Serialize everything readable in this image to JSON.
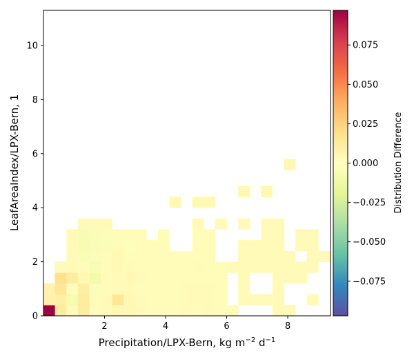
{
  "chart_data": {
    "type": "heatmap",
    "xlabel": "Precipitation/LPX-Bern,  kg m",
    "xlabel_sup1": "−2",
    "xlabel_mid": " d",
    "xlabel_sup2": "−1",
    "ylabel": "LeafAreaIndex/LPX-Bern,  1",
    "xlim": [
      0,
      9.4
    ],
    "ylim": [
      0,
      11.3
    ],
    "xticks": [
      2,
      4,
      6,
      8
    ],
    "xtick_labels": [
      "2",
      "4",
      "6",
      "8"
    ],
    "yticks": [
      0,
      2,
      4,
      6,
      8,
      10
    ],
    "ytick_labels": [
      "0",
      "2",
      "4",
      "6",
      "8",
      "10"
    ],
    "colorbar": {
      "label": "Distribution Difference",
      "colormap": "Spectral_r",
      "vmin": -0.097,
      "vmax": 0.097,
      "ticks": [
        0.075,
        0.05,
        0.025,
        0.0,
        -0.025,
        -0.05,
        -0.075
      ],
      "tick_labels": [
        "0.075",
        "0.050",
        "0.025",
        "0.000",
        "−0.025",
        "−0.050",
        "−0.075"
      ]
    },
    "cell_size": {
      "dx": 0.375,
      "dy": 0.4
    },
    "cells": [
      [
        0.0,
        0.0,
        0.097
      ],
      [
        0.375,
        0.0,
        0.012
      ],
      [
        0.75,
        0.0,
        0.003
      ],
      [
        1.125,
        0.0,
        0.012
      ],
      [
        1.5,
        0.0,
        0.002
      ],
      [
        1.875,
        0.0,
        0.003
      ],
      [
        2.25,
        0.0,
        0.005
      ],
      [
        2.625,
        0.0,
        0.004
      ],
      [
        3.0,
        0.0,
        0.003
      ],
      [
        3.375,
        0.0,
        0.002
      ],
      [
        3.75,
        0.0,
        0.002
      ],
      [
        4.125,
        0.0,
        0.002
      ],
      [
        4.5,
        0.0,
        0.003
      ],
      [
        4.875,
        0.0,
        0.002
      ],
      [
        5.25,
        0.0,
        0.003
      ],
      [
        5.625,
        0.0,
        0.002
      ],
      [
        6.0,
        0.0,
        0.003
      ],
      [
        7.5,
        0.0,
        0.003
      ],
      [
        7.875,
        0.0,
        0.003
      ],
      [
        0.0,
        0.4,
        0.008
      ],
      [
        0.375,
        0.4,
        0.01
      ],
      [
        0.75,
        0.4,
        -0.008
      ],
      [
        1.125,
        0.4,
        0.012
      ],
      [
        1.5,
        0.4,
        0.002
      ],
      [
        1.875,
        0.4,
        0.003
      ],
      [
        2.25,
        0.4,
        0.015
      ],
      [
        2.625,
        0.4,
        0.004
      ],
      [
        3.0,
        0.4,
        0.003
      ],
      [
        3.375,
        0.4,
        0.002
      ],
      [
        3.75,
        0.4,
        0.002
      ],
      [
        4.125,
        0.4,
        0.002
      ],
      [
        4.5,
        0.4,
        0.003
      ],
      [
        4.875,
        0.4,
        0.003
      ],
      [
        5.25,
        0.4,
        0.003
      ],
      [
        5.625,
        0.4,
        0.002
      ],
      [
        6.375,
        0.4,
        0.003
      ],
      [
        6.75,
        0.4,
        0.003
      ],
      [
        7.125,
        0.4,
        0.003
      ],
      [
        7.5,
        0.4,
        0.003
      ],
      [
        8.625,
        0.4,
        0.003
      ],
      [
        0.0,
        0.8,
        0.008
      ],
      [
        0.375,
        0.8,
        0.015
      ],
      [
        0.75,
        0.8,
        0.002
      ],
      [
        1.125,
        0.8,
        0.01
      ],
      [
        1.5,
        0.8,
        -0.003
      ],
      [
        1.875,
        0.8,
        0.002
      ],
      [
        2.25,
        0.8,
        0.003
      ],
      [
        2.625,
        0.8,
        0.003
      ],
      [
        3.0,
        0.8,
        0.002
      ],
      [
        3.375,
        0.8,
        0.002
      ],
      [
        3.75,
        0.8,
        0.002
      ],
      [
        4.125,
        0.8,
        0.002
      ],
      [
        4.5,
        0.8,
        0.003
      ],
      [
        4.875,
        0.8,
        0.003
      ],
      [
        5.25,
        0.8,
        0.003
      ],
      [
        5.625,
        0.8,
        0.002
      ],
      [
        6.375,
        0.8,
        0.003
      ],
      [
        7.5,
        0.8,
        0.003
      ],
      [
        0.375,
        1.2,
        0.018
      ],
      [
        0.75,
        1.2,
        0.012
      ],
      [
        1.125,
        1.2,
        0.004
      ],
      [
        1.5,
        1.2,
        -0.01
      ],
      [
        1.875,
        1.2,
        0.002
      ],
      [
        2.25,
        1.2,
        0.003
      ],
      [
        2.625,
        1.2,
        0.004
      ],
      [
        3.0,
        1.2,
        0.003
      ],
      [
        3.375,
        1.2,
        0.002
      ],
      [
        3.75,
        1.2,
        0.002
      ],
      [
        4.125,
        1.2,
        0.002
      ],
      [
        4.5,
        1.2,
        0.002
      ],
      [
        4.875,
        1.2,
        0.002
      ],
      [
        5.25,
        1.2,
        0.002
      ],
      [
        5.625,
        1.2,
        0.002
      ],
      [
        6.375,
        1.2,
        0.003
      ],
      [
        7.5,
        1.2,
        0.003
      ],
      [
        7.875,
        1.2,
        0.003
      ],
      [
        8.25,
        1.2,
        0.003
      ],
      [
        0.375,
        1.6,
        0.003
      ],
      [
        0.75,
        1.6,
        0.003
      ],
      [
        1.125,
        1.6,
        0.002
      ],
      [
        1.5,
        1.6,
        -0.006
      ],
      [
        1.875,
        1.6,
        0.002
      ],
      [
        2.25,
        1.6,
        0.004
      ],
      [
        2.625,
        1.6,
        0.003
      ],
      [
        3.0,
        1.6,
        0.002
      ],
      [
        3.375,
        1.6,
        0.002
      ],
      [
        3.75,
        1.6,
        0.002
      ],
      [
        4.125,
        1.6,
        0.002
      ],
      [
        4.5,
        1.6,
        0.002
      ],
      [
        4.875,
        1.6,
        0.003
      ],
      [
        5.25,
        1.6,
        0.002
      ],
      [
        5.625,
        1.6,
        0.002
      ],
      [
        6.0,
        1.6,
        0.003
      ],
      [
        6.375,
        1.6,
        0.003
      ],
      [
        6.75,
        1.6,
        0.003
      ],
      [
        7.125,
        1.6,
        0.003
      ],
      [
        7.5,
        1.6,
        0.003
      ],
      [
        7.875,
        1.6,
        0.003
      ],
      [
        8.25,
        1.6,
        0.003
      ],
      [
        8.625,
        1.6,
        0.003
      ],
      [
        0.75,
        2.0,
        0.003
      ],
      [
        1.125,
        2.0,
        -0.005
      ],
      [
        1.5,
        2.0,
        -0.004
      ],
      [
        1.875,
        2.0,
        0.002
      ],
      [
        2.25,
        2.0,
        0.004
      ],
      [
        2.625,
        2.0,
        -0.003
      ],
      [
        3.0,
        2.0,
        0.002
      ],
      [
        3.375,
        2.0,
        0.002
      ],
      [
        3.75,
        2.0,
        0.002
      ],
      [
        4.125,
        2.0,
        0.002
      ],
      [
        4.5,
        2.0,
        0.002
      ],
      [
        4.875,
        2.0,
        0.002
      ],
      [
        5.25,
        2.0,
        0.002
      ],
      [
        6.375,
        2.0,
        0.003
      ],
      [
        6.75,
        2.0,
        0.003
      ],
      [
        7.125,
        2.0,
        0.003
      ],
      [
        7.5,
        2.0,
        0.003
      ],
      [
        7.875,
        2.0,
        0.003
      ],
      [
        8.625,
        2.0,
        0.003
      ],
      [
        9.0,
        2.0,
        0.003
      ],
      [
        0.75,
        2.4,
        0.003
      ],
      [
        1.125,
        2.4,
        -0.006
      ],
      [
        1.5,
        2.4,
        -0.005
      ],
      [
        1.875,
        2.4,
        -0.004
      ],
      [
        2.25,
        2.4,
        0.002
      ],
      [
        2.625,
        2.4,
        -0.002
      ],
      [
        3.0,
        2.4,
        0.002
      ],
      [
        3.375,
        2.4,
        0.002
      ],
      [
        3.75,
        2.4,
        0.002
      ],
      [
        4.875,
        2.4,
        0.002
      ],
      [
        5.25,
        2.4,
        0.002
      ],
      [
        6.375,
        2.4,
        0.003
      ],
      [
        6.75,
        2.4,
        0.003
      ],
      [
        7.125,
        2.4,
        0.003
      ],
      [
        7.5,
        2.4,
        0.003
      ],
      [
        8.25,
        2.4,
        0.003
      ],
      [
        8.625,
        2.4,
        0.003
      ],
      [
        0.75,
        2.8,
        0.003
      ],
      [
        1.125,
        2.8,
        -0.006
      ],
      [
        1.5,
        2.8,
        -0.004
      ],
      [
        1.875,
        2.8,
        -0.003
      ],
      [
        2.25,
        2.8,
        0.002
      ],
      [
        2.625,
        2.8,
        0.002
      ],
      [
        3.0,
        2.8,
        0.002
      ],
      [
        3.75,
        2.8,
        0.002
      ],
      [
        4.875,
        2.8,
        0.002
      ],
      [
        5.25,
        2.8,
        0.002
      ],
      [
        7.125,
        2.8,
        0.003
      ],
      [
        7.5,
        2.8,
        0.003
      ],
      [
        8.25,
        2.8,
        0.003
      ],
      [
        8.625,
        2.8,
        0.003
      ],
      [
        1.125,
        3.2,
        0.003
      ],
      [
        1.5,
        3.2,
        0.003
      ],
      [
        1.875,
        3.2,
        0.003
      ],
      [
        4.875,
        3.2,
        0.003
      ],
      [
        5.625,
        3.2,
        0.003
      ],
      [
        6.375,
        3.2,
        0.003
      ],
      [
        7.125,
        3.2,
        0.003
      ],
      [
        7.5,
        3.2,
        0.003
      ],
      [
        4.125,
        4.0,
        0.004
      ],
      [
        4.875,
        4.0,
        0.004
      ],
      [
        5.25,
        4.0,
        0.004
      ],
      [
        6.375,
        4.4,
        0.004
      ],
      [
        7.125,
        4.4,
        0.004
      ],
      [
        7.875,
        5.4,
        0.005
      ]
    ]
  }
}
